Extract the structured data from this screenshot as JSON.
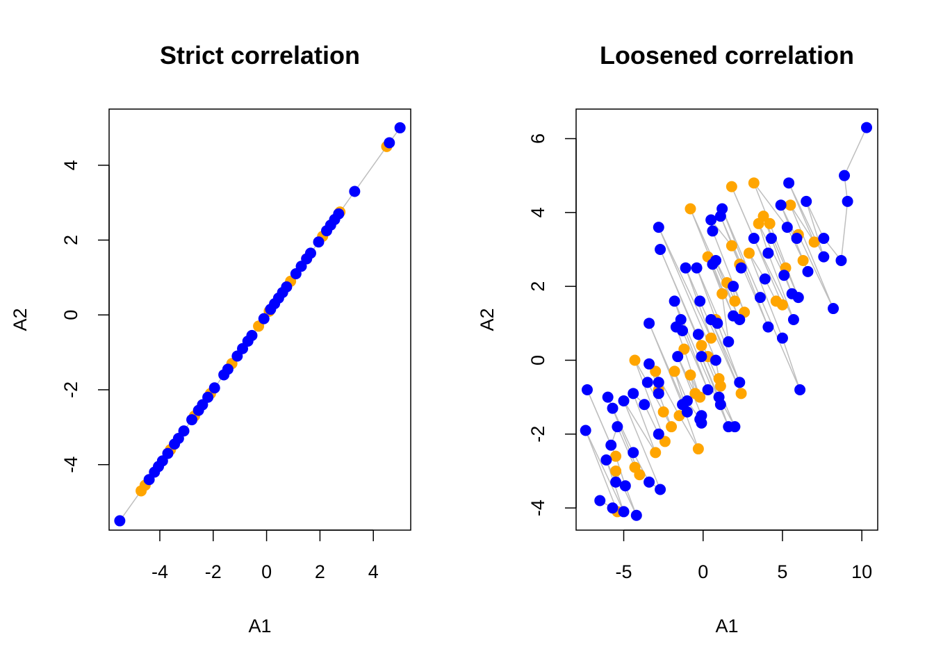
{
  "colors": {
    "group_a": "#FFA500",
    "group_b": "#0000FF",
    "link": "#BEBEBE",
    "axis": "#000000"
  },
  "chart_data": [
    {
      "type": "scatter",
      "title": "Strict correlation",
      "xlabel": "A1",
      "ylabel": "A2",
      "xlim": [
        -5.9,
        5.4
      ],
      "ylim": [
        -5.75,
        5.5
      ],
      "xticks": [
        -4,
        -2,
        0,
        2,
        4
      ],
      "yticks": [
        -4,
        -2,
        0,
        2,
        4
      ],
      "grid": false,
      "lines_connect_pairs": true,
      "series": [
        {
          "color": "#FFA500",
          "points": [
            [
              -4.7,
              -4.7
            ],
            [
              -4.55,
              -4.55
            ],
            [
              -3.6,
              -3.6
            ],
            [
              -2.7,
              -2.7
            ],
            [
              -2.1,
              -2.1
            ],
            [
              -1.3,
              -1.3
            ],
            [
              -0.3,
              -0.3
            ],
            [
              0.1,
              0.1
            ],
            [
              0.9,
              0.9
            ],
            [
              1.5,
              1.5
            ],
            [
              2.1,
              2.1
            ],
            [
              2.75,
              2.75
            ],
            [
              4.5,
              4.5
            ]
          ]
        },
        {
          "color": "#0000FF",
          "points": [
            [
              -5.5,
              -5.5
            ],
            [
              -4.4,
              -4.4
            ],
            [
              -4.2,
              -4.2
            ],
            [
              -4.05,
              -4.05
            ],
            [
              -3.9,
              -3.9
            ],
            [
              -3.7,
              -3.7
            ],
            [
              -3.45,
              -3.45
            ],
            [
              -3.3,
              -3.3
            ],
            [
              -3.1,
              -3.1
            ],
            [
              -2.8,
              -2.8
            ],
            [
              -2.55,
              -2.55
            ],
            [
              -2.4,
              -2.4
            ],
            [
              -2.2,
              -2.2
            ],
            [
              -1.95,
              -1.95
            ],
            [
              -1.6,
              -1.6
            ],
            [
              -1.45,
              -1.45
            ],
            [
              -1.1,
              -1.1
            ],
            [
              -0.9,
              -0.9
            ],
            [
              -0.7,
              -0.7
            ],
            [
              -0.55,
              -0.55
            ],
            [
              -0.1,
              -0.1
            ],
            [
              0.15,
              0.15
            ],
            [
              0.3,
              0.3
            ],
            [
              0.45,
              0.45
            ],
            [
              0.6,
              0.6
            ],
            [
              0.75,
              0.75
            ],
            [
              1.1,
              1.1
            ],
            [
              1.3,
              1.3
            ],
            [
              1.5,
              1.5
            ],
            [
              1.65,
              1.65
            ],
            [
              1.95,
              1.95
            ],
            [
              2.25,
              2.25
            ],
            [
              2.4,
              2.4
            ],
            [
              2.55,
              2.55
            ],
            [
              2.7,
              2.7
            ],
            [
              3.3,
              3.3
            ],
            [
              4.6,
              4.6
            ],
            [
              5.0,
              5.0
            ]
          ]
        }
      ]
    },
    {
      "type": "scatter",
      "title": "Loosened correlation",
      "xlabel": "A1",
      "ylabel": "A2",
      "xlim": [
        -8.0,
        11.0
      ],
      "ylim": [
        -4.6,
        6.8
      ],
      "xticks": [
        -5,
        0,
        5,
        10
      ],
      "yticks": [
        -4,
        -2,
        0,
        2,
        4,
        6
      ],
      "grid": false,
      "lines_connect_pairs": true,
      "series": [
        {
          "color": "#FFA500",
          "points": [
            [
              -4.3,
              0.0
            ],
            [
              -3.0,
              -0.3
            ],
            [
              -2.8,
              -0.8
            ],
            [
              -2.5,
              -1.4
            ],
            [
              -2.0,
              -1.8
            ],
            [
              -1.8,
              -0.3
            ],
            [
              -1.5,
              -1.5
            ],
            [
              -1.2,
              0.3
            ],
            [
              -0.8,
              -0.4
            ],
            [
              -0.5,
              -0.9
            ],
            [
              -0.3,
              -2.4
            ],
            [
              -0.1,
              0.4
            ],
            [
              0.3,
              0.1
            ],
            [
              0.5,
              0.6
            ],
            [
              0.8,
              1.1
            ],
            [
              1.0,
              -0.5
            ],
            [
              1.2,
              1.8
            ],
            [
              1.5,
              2.1
            ],
            [
              1.8,
              3.1
            ],
            [
              2.0,
              1.6
            ],
            [
              2.3,
              2.6
            ],
            [
              2.6,
              1.3
            ],
            [
              2.9,
              2.9
            ],
            [
              3.2,
              4.8
            ],
            [
              3.5,
              3.7
            ],
            [
              3.8,
              3.9
            ],
            [
              4.2,
              3.7
            ],
            [
              4.6,
              1.6
            ],
            [
              5.0,
              1.5
            ],
            [
              5.2,
              2.5
            ],
            [
              5.5,
              4.2
            ],
            [
              6.0,
              3.4
            ],
            [
              6.3,
              2.7
            ],
            [
              7.0,
              3.2
            ],
            [
              1.8,
              4.7
            ],
            [
              -0.8,
              4.1
            ],
            [
              0.3,
              2.8
            ],
            [
              -4.3,
              -2.9
            ],
            [
              -5.5,
              -2.6
            ],
            [
              -5.5,
              -3.0
            ],
            [
              -5.4,
              -4.1
            ],
            [
              -3.0,
              -2.5
            ],
            [
              -4.0,
              -3.1
            ],
            [
              -2.4,
              -2.2
            ],
            [
              1.1,
              -0.7
            ],
            [
              2.4,
              -0.9
            ],
            [
              -0.2,
              -1.0
            ]
          ]
        },
        {
          "color": "#0000FF",
          "points": [
            [
              10.3,
              6.3
            ],
            [
              8.9,
              5.0
            ],
            [
              9.1,
              4.3
            ],
            [
              5.4,
              4.8
            ],
            [
              4.9,
              4.2
            ],
            [
              6.5,
              4.3
            ],
            [
              -2.8,
              3.6
            ],
            [
              -2.7,
              3.0
            ],
            [
              0.5,
              3.8
            ],
            [
              0.6,
              3.5
            ],
            [
              1.2,
              4.1
            ],
            [
              1.1,
              3.9
            ],
            [
              3.2,
              3.3
            ],
            [
              4.3,
              3.3
            ],
            [
              4.1,
              2.9
            ],
            [
              5.3,
              3.6
            ],
            [
              5.9,
              3.3
            ],
            [
              7.6,
              3.3
            ],
            [
              8.7,
              2.7
            ],
            [
              7.6,
              2.8
            ],
            [
              6.6,
              2.4
            ],
            [
              5.1,
              2.3
            ],
            [
              3.9,
              2.2
            ],
            [
              2.4,
              2.5
            ],
            [
              0.8,
              2.7
            ],
            [
              0.6,
              2.6
            ],
            [
              -1.1,
              2.5
            ],
            [
              -0.4,
              2.5
            ],
            [
              1.9,
              2.0
            ],
            [
              3.6,
              1.7
            ],
            [
              5.6,
              1.8
            ],
            [
              6.0,
              1.7
            ],
            [
              8.2,
              1.4
            ],
            [
              -1.8,
              1.6
            ],
            [
              -0.2,
              1.6
            ],
            [
              0.5,
              1.1
            ],
            [
              1.9,
              1.2
            ],
            [
              2.3,
              1.1
            ],
            [
              4.1,
              0.9
            ],
            [
              5.7,
              1.1
            ],
            [
              5.0,
              0.6
            ],
            [
              -1.4,
              1.1
            ],
            [
              -1.3,
              0.8
            ],
            [
              -1.7,
              0.9
            ],
            [
              -3.4,
              1.0
            ],
            [
              -0.3,
              0.7
            ],
            [
              0.9,
              1.0
            ],
            [
              1.6,
              0.5
            ],
            [
              -0.1,
              0.1
            ],
            [
              0.8,
              0.0
            ],
            [
              -3.4,
              -0.1
            ],
            [
              -1.6,
              0.1
            ],
            [
              -3.5,
              -0.6
            ],
            [
              -2.8,
              -0.6
            ],
            [
              -2.8,
              -0.9
            ],
            [
              -4.4,
              -0.9
            ],
            [
              -5.0,
              -1.1
            ],
            [
              -6.0,
              -1.0
            ],
            [
              -5.7,
              -1.3
            ],
            [
              -7.3,
              -0.8
            ],
            [
              -7.4,
              -1.9
            ],
            [
              -5.4,
              -1.8
            ],
            [
              -3.7,
              -1.2
            ],
            [
              -1.0,
              -1.1
            ],
            [
              -1.3,
              -1.2
            ],
            [
              -1.0,
              -1.4
            ],
            [
              -0.2,
              -1.6
            ],
            [
              0.3,
              -0.8
            ],
            [
              1.0,
              -1.0
            ],
            [
              1.1,
              -1.2
            ],
            [
              2.3,
              -0.6
            ],
            [
              6.1,
              -0.8
            ],
            [
              -2.8,
              -2.0
            ],
            [
              -5.8,
              -2.3
            ],
            [
              -6.1,
              -2.7
            ],
            [
              -4.4,
              -2.5
            ],
            [
              -5.5,
              -3.3
            ],
            [
              -4.9,
              -3.4
            ],
            [
              -3.4,
              -3.3
            ],
            [
              -2.7,
              -3.5
            ],
            [
              -6.5,
              -3.8
            ],
            [
              -5.7,
              -4.0
            ],
            [
              -5.0,
              -4.1
            ],
            [
              -4.2,
              -4.2
            ],
            [
              -0.1,
              -1.7
            ],
            [
              -0.1,
              -1.5
            ],
            [
              1.6,
              -1.8
            ],
            [
              2.0,
              -1.8
            ]
          ]
        }
      ]
    }
  ]
}
